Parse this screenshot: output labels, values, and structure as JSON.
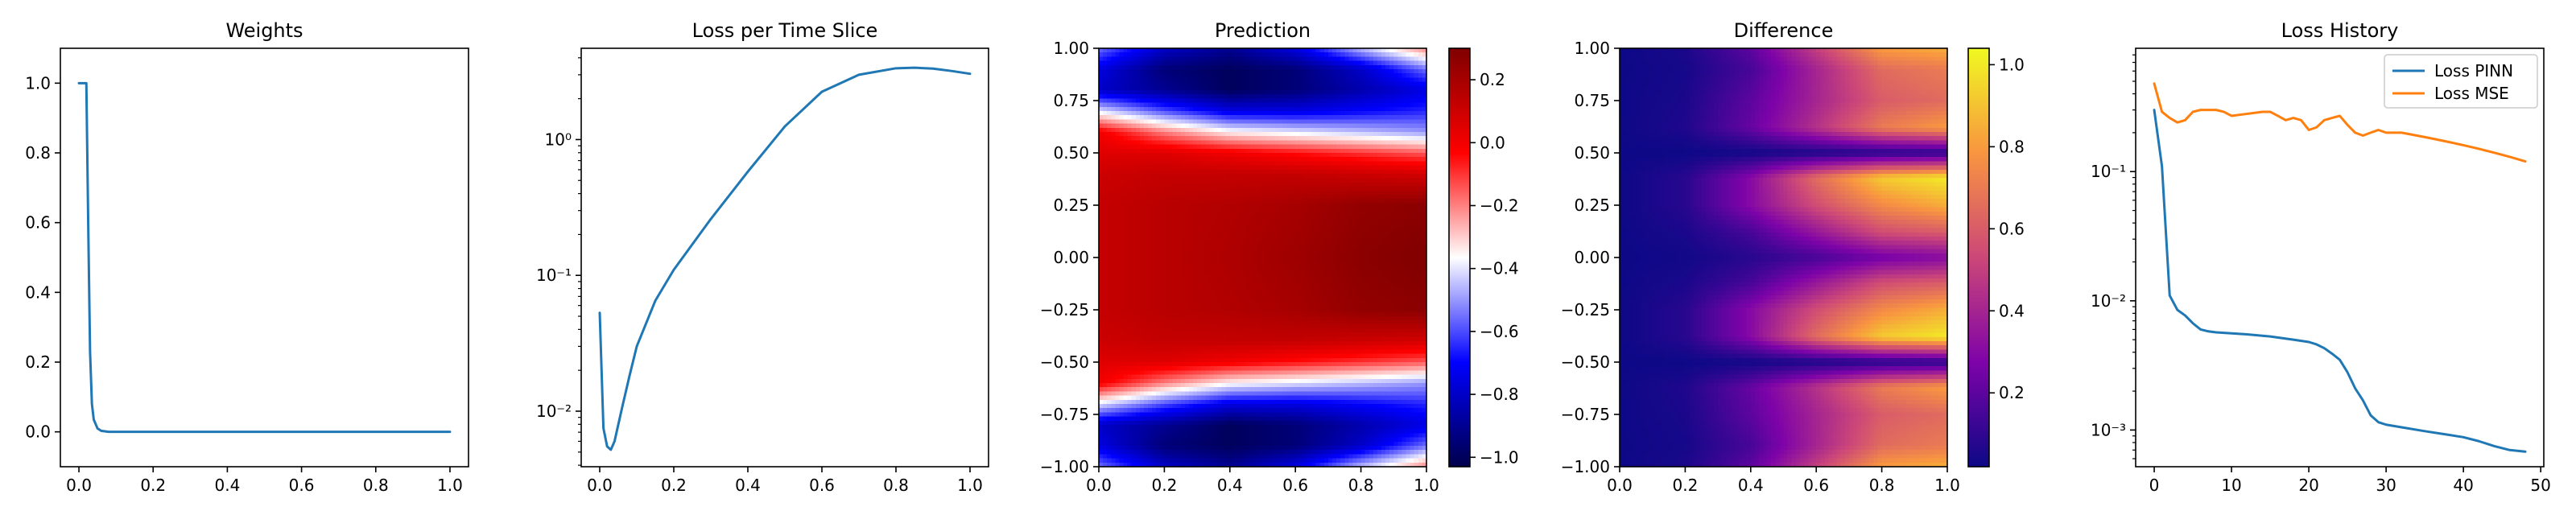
{
  "chart_data": [
    {
      "type": "line",
      "title": "Weights",
      "xlabel": "",
      "ylabel": "",
      "xlim": [
        -0.05,
        1.05
      ],
      "ylim": [
        -0.1,
        1.1
      ],
      "xticks": [
        0.0,
        0.2,
        0.4,
        0.6,
        0.8,
        1.0
      ],
      "xtick_labels": [
        "0.0",
        "0.2",
        "0.4",
        "0.6",
        "0.8",
        "1.0"
      ],
      "yticks": [
        0.0,
        0.2,
        0.4,
        0.6,
        0.8,
        1.0
      ],
      "ytick_labels": [
        "0.0",
        "0.2",
        "0.4",
        "0.6",
        "0.8",
        "1.0"
      ],
      "grid": false,
      "series": [
        {
          "color": "#1f77b4",
          "x": [
            0.0,
            0.02,
            0.025,
            0.03,
            0.035,
            0.04,
            0.05,
            0.06,
            0.08,
            0.1,
            0.2,
            0.4,
            0.6,
            0.8,
            1.0
          ],
          "y": [
            1.0,
            1.0,
            0.6,
            0.23,
            0.08,
            0.035,
            0.01,
            0.003,
            0.0,
            0.0,
            0.0,
            0.0,
            0.0,
            0.0,
            0.0
          ]
        }
      ]
    },
    {
      "type": "line",
      "title": "Loss per Time Slice",
      "xlabel": "",
      "ylabel": "",
      "yscale": "log",
      "xlim": [
        -0.05,
        1.05
      ],
      "ylim": [
        0.0039,
        4.7
      ],
      "xticks": [
        0.0,
        0.2,
        0.4,
        0.6,
        0.8,
        1.0
      ],
      "xtick_labels": [
        "0.0",
        "0.2",
        "0.4",
        "0.6",
        "0.8",
        "1.0"
      ],
      "yticks": [
        0.01,
        0.1,
        1
      ],
      "ytick_labels": [
        "10⁻²",
        "10⁻¹",
        "10⁰"
      ],
      "grid": false,
      "series": [
        {
          "color": "#1f77b4",
          "x": [
            0.0,
            0.01,
            0.02,
            0.03,
            0.04,
            0.06,
            0.08,
            0.1,
            0.15,
            0.2,
            0.3,
            0.4,
            0.5,
            0.6,
            0.7,
            0.8,
            0.85,
            0.9,
            0.95,
            1.0
          ],
          "y": [
            0.053,
            0.0075,
            0.0055,
            0.0052,
            0.006,
            0.0105,
            0.018,
            0.03,
            0.065,
            0.11,
            0.26,
            0.58,
            1.25,
            2.25,
            3.0,
            3.35,
            3.38,
            3.33,
            3.2,
            3.05
          ]
        }
      ]
    },
    {
      "type": "heatmap",
      "title": "Prediction",
      "xlabel": "",
      "ylabel": "",
      "colormap": "seismic",
      "xlim": [
        0.0,
        1.0
      ],
      "ylim": [
        -1.0,
        1.0
      ],
      "xticks": [
        0.0,
        0.2,
        0.4,
        0.6,
        0.8,
        1.0
      ],
      "xtick_labels": [
        "0.0",
        "0.2",
        "0.4",
        "0.6",
        "0.8",
        "1.0"
      ],
      "yticks": [
        -1.0,
        -0.75,
        -0.5,
        -0.25,
        0.0,
        0.25,
        0.5,
        0.75,
        1.0
      ],
      "ytick_labels": [
        "−1.00",
        "−0.75",
        "−0.50",
        "−0.25",
        "0.00",
        "0.25",
        "0.50",
        "0.75",
        "1.00"
      ],
      "colorbar_range": [
        -1.03,
        0.3
      ],
      "colorbar_ticks": [
        -1.0,
        -0.8,
        -0.6,
        -0.4,
        -0.2,
        0.0,
        0.2
      ],
      "colorbar_tick_labels": [
        "−1.0",
        "−0.8",
        "−0.6",
        "−0.4",
        "−0.2",
        "0.0",
        "0.2"
      ],
      "x_samples": [
        0.0,
        0.2,
        0.4,
        0.6,
        0.8,
        1.0
      ],
      "y_samples": [
        1.0,
        0.9,
        0.8,
        0.7,
        0.6,
        0.5,
        0.4,
        0.25,
        0.0,
        -0.25,
        -0.4,
        -0.5,
        -0.6,
        -0.7,
        -0.8,
        -0.9,
        -1.0
      ],
      "values": [
        [
          -0.55,
          -0.8,
          -0.9,
          -0.75,
          -0.45,
          -0.2
        ],
        [
          -0.75,
          -0.95,
          -1.0,
          -0.95,
          -0.8,
          -0.55
        ],
        [
          -0.8,
          -0.9,
          -1.0,
          -0.95,
          -0.85,
          -0.75
        ],
        [
          -0.4,
          -0.6,
          -0.75,
          -0.75,
          -0.7,
          -0.65
        ],
        [
          0.0,
          -0.2,
          -0.35,
          -0.4,
          -0.45,
          -0.5
        ],
        [
          0.05,
          0.05,
          0.0,
          -0.05,
          -0.1,
          -0.15
        ],
        [
          0.1,
          0.12,
          0.12,
          0.12,
          0.1,
          0.08
        ],
        [
          0.12,
          0.15,
          0.17,
          0.2,
          0.25,
          0.27
        ],
        [
          0.12,
          0.15,
          0.18,
          0.22,
          0.27,
          0.3
        ],
        [
          0.12,
          0.15,
          0.17,
          0.2,
          0.25,
          0.27
        ],
        [
          0.1,
          0.12,
          0.12,
          0.12,
          0.1,
          0.08
        ],
        [
          0.05,
          0.05,
          0.0,
          -0.05,
          -0.1,
          -0.15
        ],
        [
          0.0,
          -0.2,
          -0.35,
          -0.4,
          -0.45,
          -0.5
        ],
        [
          -0.4,
          -0.6,
          -0.75,
          -0.75,
          -0.7,
          -0.65
        ],
        [
          -0.8,
          -0.9,
          -1.0,
          -0.95,
          -0.85,
          -0.75
        ],
        [
          -0.75,
          -0.95,
          -1.0,
          -0.95,
          -0.8,
          -0.55
        ],
        [
          -0.55,
          -0.8,
          -0.9,
          -0.75,
          -0.45,
          -0.2
        ]
      ]
    },
    {
      "type": "heatmap",
      "title": "Difference",
      "xlabel": "",
      "ylabel": "",
      "colormap": "plasma",
      "xlim": [
        0.0,
        1.0
      ],
      "ylim": [
        -1.0,
        1.0
      ],
      "xticks": [
        0.0,
        0.2,
        0.4,
        0.6,
        0.8,
        1.0
      ],
      "xtick_labels": [
        "0.0",
        "0.2",
        "0.4",
        "0.6",
        "0.8",
        "1.0"
      ],
      "yticks": [
        -1.0,
        -0.75,
        -0.5,
        -0.25,
        0.0,
        0.25,
        0.5,
        0.75,
        1.0
      ],
      "ytick_labels": [
        "−1.00",
        "−0.75",
        "−0.50",
        "−0.25",
        "0.00",
        "0.25",
        "0.50",
        "0.75",
        "1.00"
      ],
      "colorbar_range": [
        0.02,
        1.04
      ],
      "colorbar_ticks": [
        0.2,
        0.4,
        0.6,
        0.8,
        1.0
      ],
      "colorbar_tick_labels": [
        "0.2",
        "0.4",
        "0.6",
        "0.8",
        "1.0"
      ],
      "x_samples": [
        0.0,
        0.2,
        0.4,
        0.6,
        0.8,
        1.0
      ],
      "y_samples": [
        1.0,
        0.9,
        0.75,
        0.62,
        0.5,
        0.38,
        0.25,
        0.12,
        0.0,
        -0.12,
        -0.25,
        -0.38,
        -0.5,
        -0.62,
        -0.75,
        -0.9,
        -1.0
      ],
      "values": [
        [
          0.02,
          0.05,
          0.2,
          0.5,
          0.8,
          0.85
        ],
        [
          0.02,
          0.04,
          0.15,
          0.4,
          0.65,
          0.7
        ],
        [
          0.02,
          0.05,
          0.2,
          0.4,
          0.6,
          0.65
        ],
        [
          0.02,
          0.06,
          0.22,
          0.45,
          0.7,
          0.8
        ],
        [
          0.02,
          0.02,
          0.03,
          0.05,
          0.07,
          0.08
        ],
        [
          0.02,
          0.08,
          0.3,
          0.65,
          0.92,
          1.0
        ],
        [
          0.02,
          0.08,
          0.3,
          0.55,
          0.75,
          0.85
        ],
        [
          0.02,
          0.05,
          0.15,
          0.35,
          0.55,
          0.6
        ],
        [
          0.02,
          0.03,
          0.08,
          0.15,
          0.25,
          0.3
        ],
        [
          0.02,
          0.05,
          0.15,
          0.35,
          0.55,
          0.6
        ],
        [
          0.02,
          0.08,
          0.3,
          0.55,
          0.75,
          0.85
        ],
        [
          0.02,
          0.08,
          0.3,
          0.65,
          0.92,
          1.0
        ],
        [
          0.02,
          0.02,
          0.03,
          0.05,
          0.07,
          0.08
        ],
        [
          0.02,
          0.06,
          0.22,
          0.45,
          0.7,
          0.8
        ],
        [
          0.02,
          0.05,
          0.2,
          0.4,
          0.6,
          0.65
        ],
        [
          0.02,
          0.04,
          0.15,
          0.4,
          0.65,
          0.7
        ],
        [
          0.02,
          0.05,
          0.2,
          0.5,
          0.8,
          0.85
        ]
      ]
    },
    {
      "type": "line",
      "title": "Loss History",
      "xlabel": "",
      "ylabel": "",
      "yscale": "log",
      "xlim": [
        -2.4,
        50.4
      ],
      "ylim": [
        0.00052,
        0.9
      ],
      "xticks": [
        0,
        10,
        20,
        30,
        40,
        50
      ],
      "xtick_labels": [
        "0",
        "10",
        "20",
        "30",
        "40",
        "50"
      ],
      "yticks": [
        0.001,
        0.01,
        0.1
      ],
      "ytick_labels": [
        "10⁻³",
        "10⁻²",
        "10⁻¹"
      ],
      "grid": false,
      "legend": "top-right",
      "series": [
        {
          "name": "Loss PINN",
          "color": "#1f77b4",
          "x": [
            0,
            1,
            2,
            3,
            4,
            5,
            6,
            7,
            8,
            10,
            12,
            15,
            18,
            20,
            21,
            22,
            23,
            24,
            25,
            26,
            27,
            28,
            29,
            30,
            32,
            35,
            38,
            40,
            42,
            44,
            46,
            48
          ],
          "y": [
            0.3,
            0.11,
            0.011,
            0.0085,
            0.0077,
            0.0067,
            0.006,
            0.0058,
            0.0057,
            0.0056,
            0.0055,
            0.0053,
            0.005,
            0.0048,
            0.0046,
            0.0043,
            0.0039,
            0.0035,
            0.0028,
            0.0021,
            0.0017,
            0.0013,
            0.00115,
            0.0011,
            0.00105,
            0.00098,
            0.00092,
            0.00088,
            0.00082,
            0.00075,
            0.0007,
            0.00068
          ]
        },
        {
          "name": "Loss MSE",
          "color": "#ff7f0e",
          "x": [
            0,
            1,
            2,
            3,
            4,
            5,
            6,
            8,
            9,
            10,
            12,
            14,
            15,
            16,
            17,
            18,
            19,
            20,
            21,
            22,
            23,
            24,
            25,
            26,
            27,
            28,
            29,
            30,
            32,
            34,
            36,
            38,
            40,
            42,
            44,
            46,
            48
          ],
          "y": [
            0.48,
            0.29,
            0.26,
            0.24,
            0.25,
            0.29,
            0.3,
            0.3,
            0.29,
            0.27,
            0.28,
            0.29,
            0.29,
            0.27,
            0.25,
            0.26,
            0.25,
            0.21,
            0.22,
            0.25,
            0.26,
            0.27,
            0.23,
            0.2,
            0.19,
            0.2,
            0.21,
            0.2,
            0.2,
            0.19,
            0.18,
            0.17,
            0.16,
            0.15,
            0.14,
            0.13,
            0.12
          ]
        }
      ]
    }
  ]
}
